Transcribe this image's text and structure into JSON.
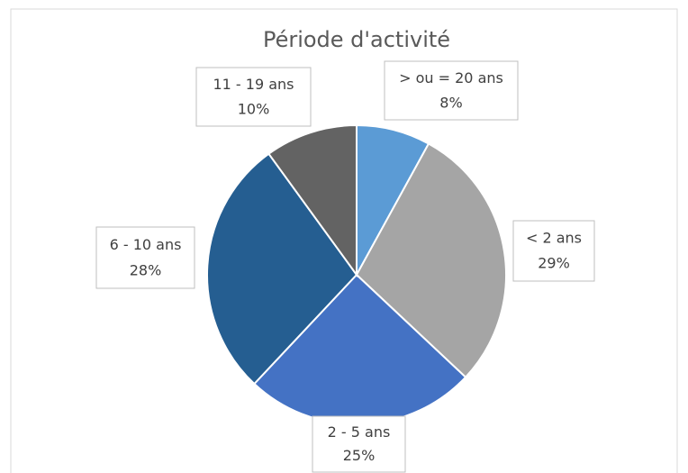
{
  "chart_data": {
    "type": "pie",
    "title": "Période d'activité",
    "categories": [
      "> ou = 20 ans",
      "< 2 ans",
      "2 - 5 ans",
      "6 - 10 ans",
      "11 - 19 ans"
    ],
    "values": [
      8,
      29,
      25,
      28,
      10
    ],
    "value_labels": [
      "8%",
      "29%",
      "25%",
      "28%",
      "10%"
    ],
    "colors": [
      "#5b9bd5",
      "#a5a5a5",
      "#4472c4",
      "#255e91",
      "#636363"
    ]
  }
}
